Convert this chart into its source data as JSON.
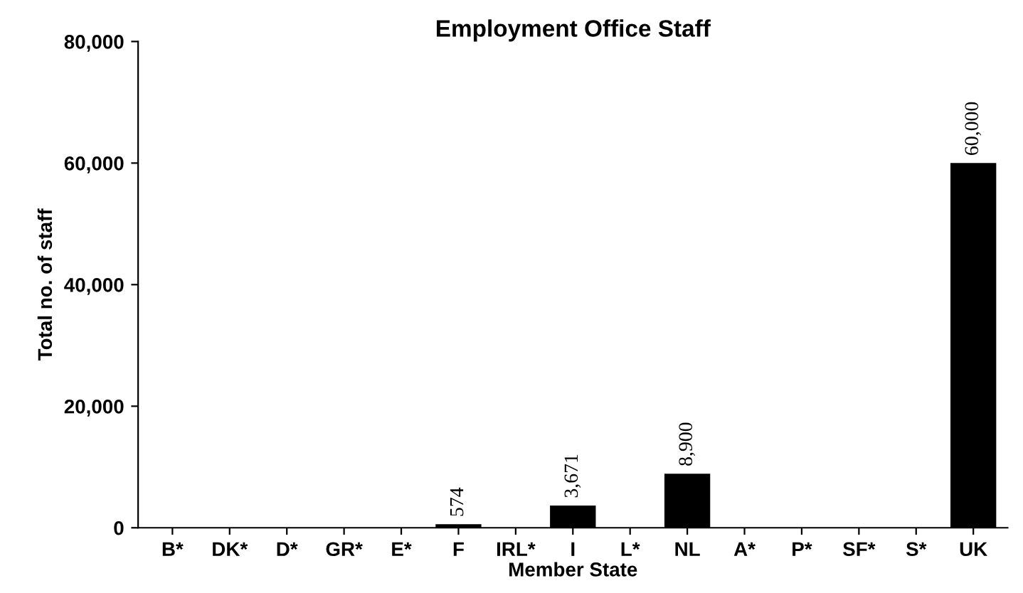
{
  "chart_data": {
    "type": "bar",
    "title": "Employment Office Staff",
    "xlabel": "Member State",
    "ylabel": "Total no. of staff",
    "categories": [
      "B*",
      "DK*",
      "D*",
      "GR*",
      "E*",
      "F",
      "IRL*",
      "I",
      "L*",
      "NL",
      "A*",
      "P*",
      "SF*",
      "S*",
      "UK"
    ],
    "values": [
      null,
      null,
      null,
      null,
      null,
      574,
      null,
      3671,
      null,
      8900,
      null,
      null,
      null,
      null,
      60000
    ],
    "value_labels": [
      null,
      null,
      null,
      null,
      null,
      "574",
      null,
      "3,671",
      null,
      "8,900",
      null,
      null,
      null,
      null,
      "60,000"
    ],
    "color": "#000000",
    "ylim": [
      0,
      80000
    ],
    "yticks": [
      {
        "value": 0,
        "label": "0"
      },
      {
        "value": 20000,
        "label": "20,000"
      },
      {
        "value": 40000,
        "label": "40,000"
      },
      {
        "value": 60000,
        "label": "60,000"
      },
      {
        "value": 80000,
        "label": "80,000"
      }
    ],
    "grid": false
  }
}
